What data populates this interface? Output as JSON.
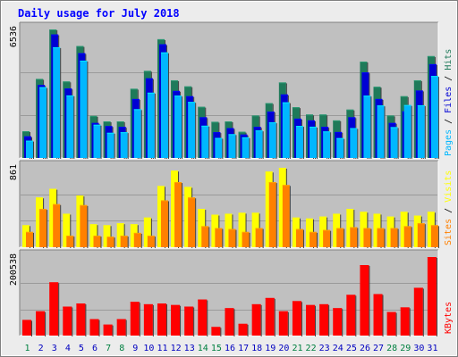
{
  "title": "Daily usage for July 2018",
  "colors": {
    "background": "#ececec",
    "plot": "#c0c0c0",
    "title": "#0000ff",
    "hits": "#1f7a5a",
    "files": "#0000d4",
    "pages": "#00b7ff",
    "visits": "#ffff00",
    "sites": "#ff8000",
    "kbytes": "#ff0000",
    "weekend": "#008040",
    "weekday": "#0000ff"
  },
  "chart_data": [
    {
      "type": "bar",
      "panel": "top",
      "max_label": "6536",
      "legend": [
        "Pages",
        "Files",
        "Hits"
      ],
      "categories": [
        "1",
        "2",
        "3",
        "4",
        "5",
        "6",
        "7",
        "8",
        "9",
        "10",
        "11",
        "12",
        "13",
        "14",
        "15",
        "16",
        "17",
        "18",
        "19",
        "20",
        "21",
        "22",
        "23",
        "24",
        "25",
        "26",
        "27",
        "28",
        "29",
        "30",
        "31"
      ],
      "series": [
        {
          "name": "Hits",
          "values": [
            1360,
            4020,
            6536,
            3890,
            5690,
            2140,
            1860,
            1860,
            3520,
            4430,
            6040,
            3950,
            3640,
            2600,
            1840,
            1860,
            1330,
            2160,
            2790,
            3840,
            2580,
            2210,
            2210,
            1910,
            2460,
            4900,
            3620,
            2160,
            3140,
            3950,
            5180
          ]
        },
        {
          "name": "Files",
          "values": [
            1100,
            3710,
            6280,
            3530,
            5330,
            1780,
            1620,
            1580,
            3000,
            4050,
            5780,
            3410,
            3140,
            2070,
            1310,
            1520,
            1190,
            1580,
            2360,
            3230,
            2000,
            1910,
            1580,
            1320,
            2070,
            4350,
            3000,
            1780,
            2370,
            3430,
            4770
          ]
        },
        {
          "name": "Pages",
          "values": [
            880,
            3600,
            5630,
            3180,
            4950,
            1690,
            1280,
            1310,
            2480,
            3320,
            5370,
            3170,
            2850,
            1640,
            1020,
            1210,
            1050,
            1400,
            1810,
            2830,
            1630,
            1590,
            1350,
            1010,
            1520,
            3170,
            2670,
            1570,
            2690,
            2680,
            4170
          ]
        }
      ]
    },
    {
      "type": "bar",
      "panel": "middle",
      "max_label": "861",
      "legend": [
        "Sites",
        "Visits"
      ],
      "categories": [
        "1",
        "2",
        "3",
        "4",
        "5",
        "6",
        "7",
        "8",
        "9",
        "10",
        "11",
        "12",
        "13",
        "14",
        "15",
        "16",
        "17",
        "18",
        "19",
        "20",
        "21",
        "22",
        "23",
        "24",
        "25",
        "26",
        "27",
        "28",
        "29",
        "30",
        "31"
      ],
      "series": [
        {
          "name": "Visits",
          "values": [
            230,
            520,
            610,
            350,
            540,
            240,
            230,
            250,
            240,
            310,
            640,
            800,
            630,
            400,
            340,
            350,
            360,
            360,
            790,
            830,
            310,
            300,
            320,
            350,
            400,
            370,
            350,
            320,
            370,
            330,
            370
          ]
        },
        {
          "name": "Sites",
          "values": [
            160,
            400,
            450,
            120,
            440,
            120,
            110,
            120,
            150,
            120,
            490,
            680,
            520,
            220,
            200,
            190,
            160,
            200,
            680,
            650,
            190,
            160,
            180,
            200,
            210,
            200,
            200,
            200,
            220,
            250,
            230
          ]
        }
      ]
    },
    {
      "type": "bar",
      "panel": "bottom",
      "max_label": "200538",
      "legend": [
        "KBytes"
      ],
      "categories": [
        "1",
        "2",
        "3",
        "4",
        "5",
        "6",
        "7",
        "8",
        "9",
        "10",
        "11",
        "12",
        "13",
        "14",
        "15",
        "16",
        "17",
        "18",
        "19",
        "20",
        "21",
        "22",
        "23",
        "24",
        "25",
        "26",
        "27",
        "28",
        "29",
        "30",
        "31"
      ],
      "series": [
        {
          "name": "KBytes",
          "values": [
            40000,
            62000,
            136000,
            74000,
            82000,
            42000,
            28000,
            42000,
            86000,
            80000,
            82000,
            78000,
            74000,
            92000,
            22000,
            70000,
            30000,
            80000,
            96000,
            62000,
            88000,
            78000,
            80000,
            70000,
            104000,
            180000,
            106000,
            60000,
            72000,
            122000,
            200538
          ]
        }
      ]
    }
  ]
}
